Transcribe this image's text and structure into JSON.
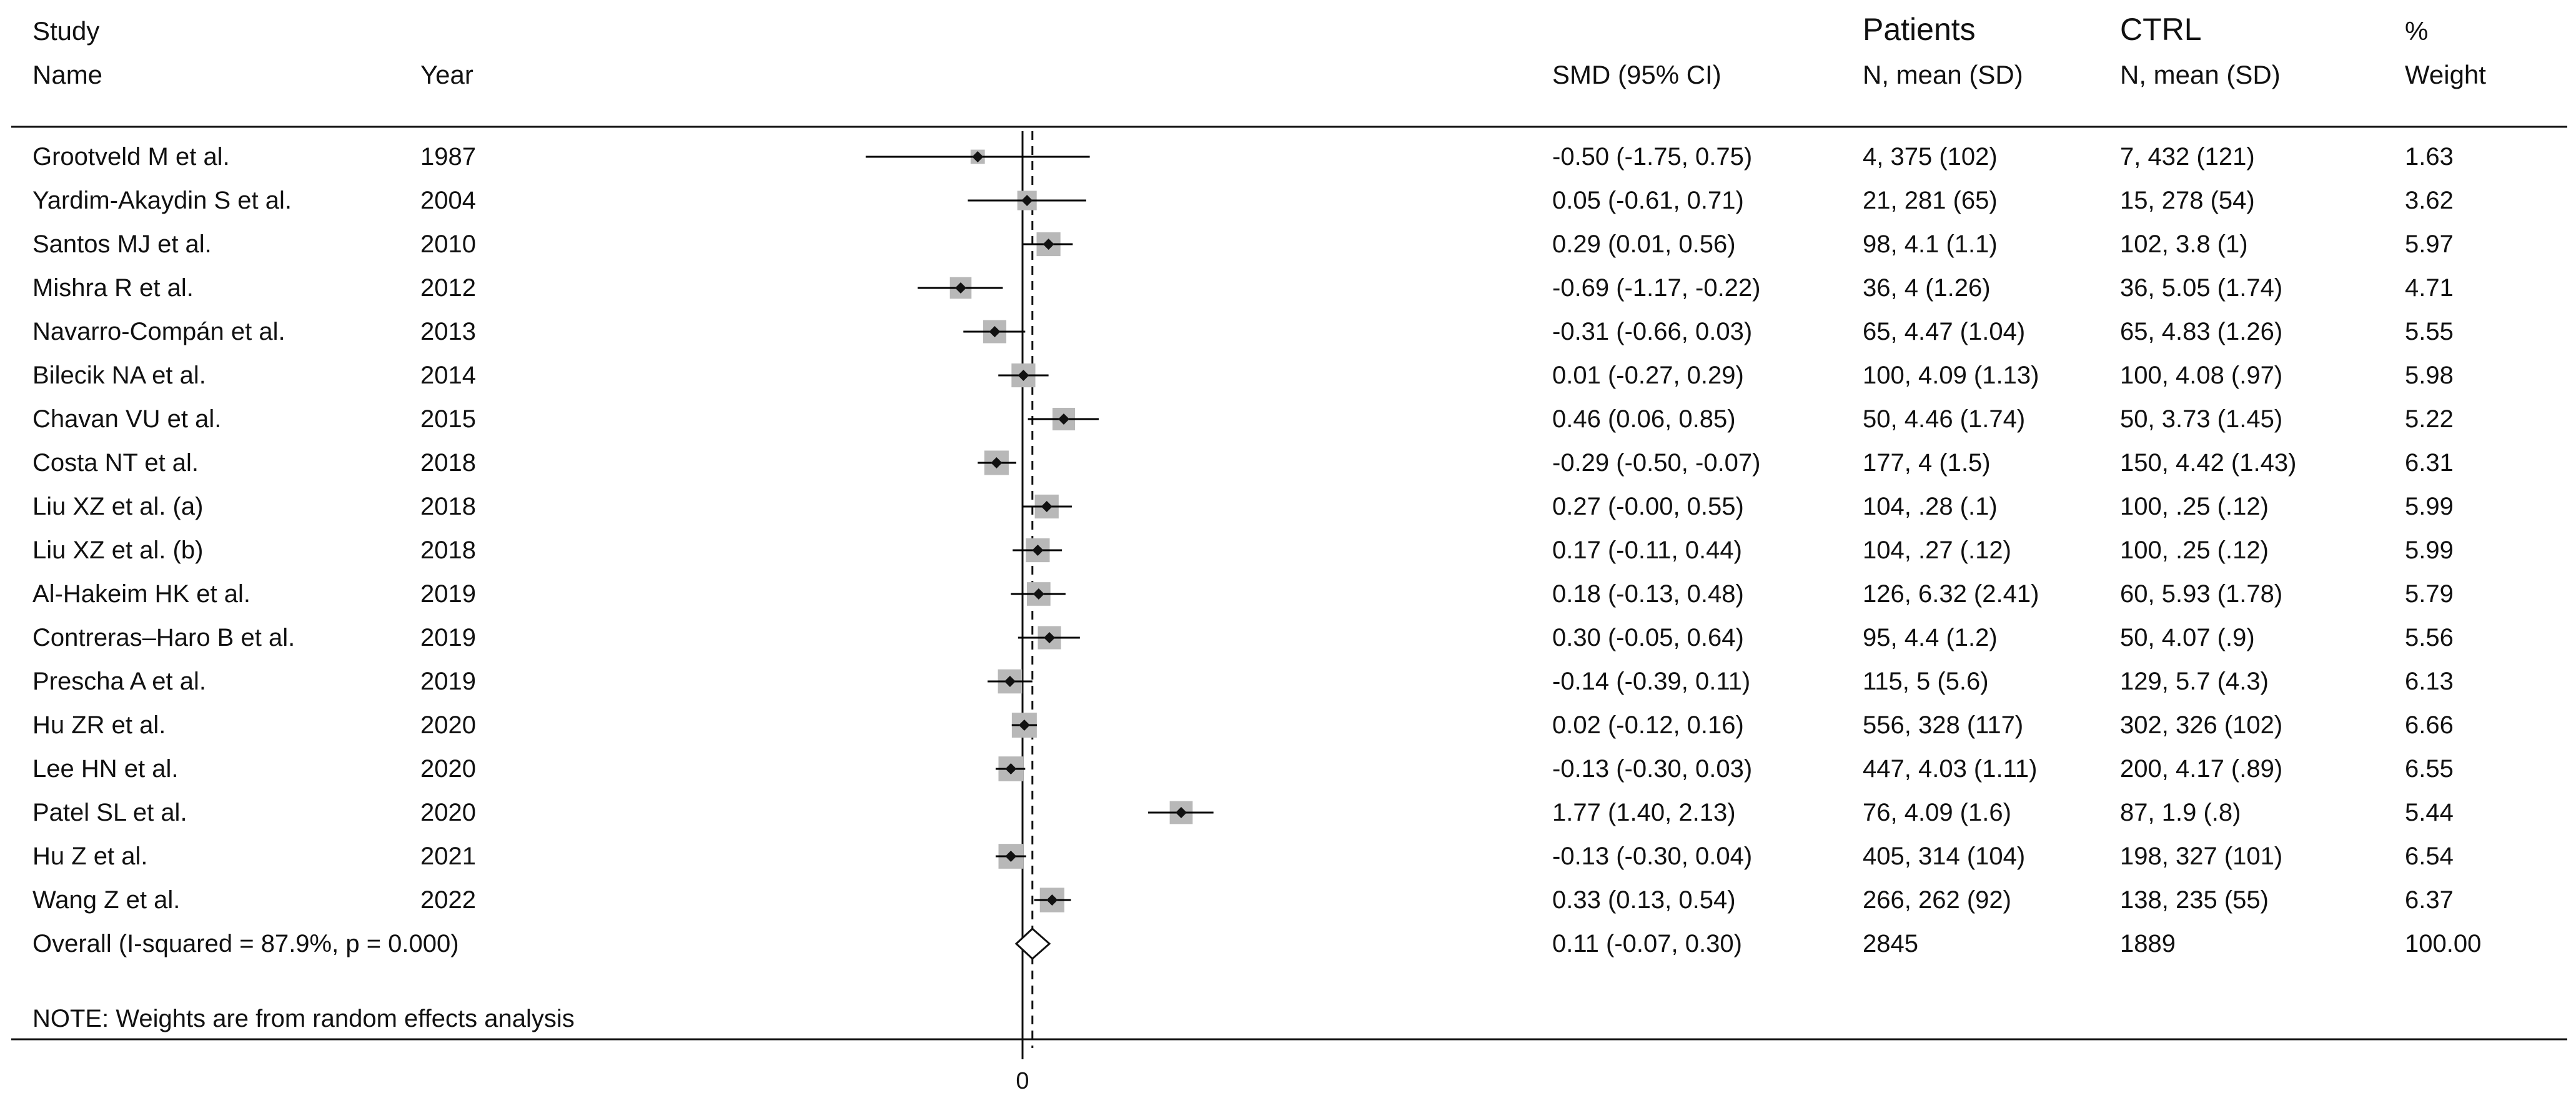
{
  "chart_data": {
    "type": "forest",
    "headers": {
      "study_line1": "Study",
      "study_line2": "Name",
      "year": "Year",
      "smd": "SMD (95% CI)",
      "patients_line1": "Patients",
      "patients_line2": "N, mean (SD)",
      "ctrl_line1": "CTRL",
      "ctrl_line2": "N, mean (SD)",
      "weight_line1": "%",
      "weight_line2": "Weight"
    },
    "xaxis": {
      "ticks": [
        0
      ],
      "tick_labels": [
        "0"
      ],
      "range": [
        -2.4,
        2.45
      ]
    },
    "studies": [
      {
        "name": "Grootveld M et al.",
        "year": "1987",
        "smd": -0.5,
        "lower": -1.75,
        "upper": 0.75,
        "smd_text": "-0.50 (-1.75, 0.75)",
        "patients": "4, 375 (102)",
        "ctrl": "7, 432 (121)",
        "weight": 1.63,
        "weight_text": "1.63"
      },
      {
        "name": "Yardim-Akaydin S et al.",
        "year": "2004",
        "smd": 0.05,
        "lower": -0.61,
        "upper": 0.71,
        "smd_text": "0.05 (-0.61, 0.71)",
        "patients": "21, 281 (65)",
        "ctrl": "15, 278 (54)",
        "weight": 3.62,
        "weight_text": "3.62"
      },
      {
        "name": "Santos MJ et al.",
        "year": "2010",
        "smd": 0.29,
        "lower": 0.01,
        "upper": 0.56,
        "smd_text": "0.29 (0.01, 0.56)",
        "patients": "98, 4.1 (1.1)",
        "ctrl": "102, 3.8 (1)",
        "weight": 5.97,
        "weight_text": "5.97"
      },
      {
        "name": "Mishra R et al.",
        "year": "2012",
        "smd": -0.69,
        "lower": -1.17,
        "upper": -0.22,
        "smd_text": "-0.69 (-1.17, -0.22)",
        "patients": "36, 4 (1.26)",
        "ctrl": "36, 5.05 (1.74)",
        "weight": 4.71,
        "weight_text": "4.71"
      },
      {
        "name": "Navarro-Compán et al.",
        "year": "2013",
        "smd": -0.31,
        "lower": -0.66,
        "upper": 0.03,
        "smd_text": "-0.31 (-0.66, 0.03)",
        "patients": "65, 4.47 (1.04)",
        "ctrl": "65, 4.83 (1.26)",
        "weight": 5.55,
        "weight_text": "5.55"
      },
      {
        "name": "Bilecik NA et al.",
        "year": "2014",
        "smd": 0.01,
        "lower": -0.27,
        "upper": 0.29,
        "smd_text": "0.01 (-0.27, 0.29)",
        "patients": "100, 4.09 (1.13)",
        "ctrl": "100, 4.08 (.97)",
        "weight": 5.98,
        "weight_text": "5.98"
      },
      {
        "name": "Chavan VU et al.",
        "year": "2015",
        "smd": 0.46,
        "lower": 0.06,
        "upper": 0.85,
        "smd_text": "0.46 (0.06, 0.85)",
        "patients": "50, 4.46 (1.74)",
        "ctrl": "50, 3.73 (1.45)",
        "weight": 5.22,
        "weight_text": "5.22"
      },
      {
        "name": "Costa NT et al.",
        "year": "2018",
        "smd": -0.29,
        "lower": -0.5,
        "upper": -0.07,
        "smd_text": "-0.29 (-0.50, -0.07)",
        "patients": "177, 4 (1.5)",
        "ctrl": "150, 4.42 (1.43)",
        "weight": 6.31,
        "weight_text": "6.31"
      },
      {
        "name": "Liu XZ et al. (a)",
        "year": "2018",
        "smd": 0.27,
        "lower": -0.0,
        "upper": 0.55,
        "smd_text": "0.27 (-0.00, 0.55)",
        "patients": "104, .28 (.1)",
        "ctrl": "100, .25 (.12)",
        "weight": 5.99,
        "weight_text": "5.99"
      },
      {
        "name": "Liu XZ et al. (b)",
        "year": "2018",
        "smd": 0.17,
        "lower": -0.11,
        "upper": 0.44,
        "smd_text": "0.17 (-0.11, 0.44)",
        "patients": "104, .27 (.12)",
        "ctrl": "100, .25 (.12)",
        "weight": 5.99,
        "weight_text": "5.99"
      },
      {
        "name": "Al-Hakeim HK et al.",
        "year": "2019",
        "smd": 0.18,
        "lower": -0.13,
        "upper": 0.48,
        "smd_text": "0.18 (-0.13, 0.48)",
        "patients": "126, 6.32 (2.41)",
        "ctrl": "60, 5.93 (1.78)",
        "weight": 5.79,
        "weight_text": "5.79"
      },
      {
        "name": "Contreras–Haro B et al.",
        "year": "2019",
        "smd": 0.3,
        "lower": -0.05,
        "upper": 0.64,
        "smd_text": "0.30 (-0.05, 0.64)",
        "patients": "95, 4.4 (1.2)",
        "ctrl": "50, 4.07 (.9)",
        "weight": 5.56,
        "weight_text": "5.56"
      },
      {
        "name": "Prescha A et al.",
        "year": "2019",
        "smd": -0.14,
        "lower": -0.39,
        "upper": 0.11,
        "smd_text": "-0.14 (-0.39, 0.11)",
        "patients": "115, 5 (5.6)",
        "ctrl": "129, 5.7 (4.3)",
        "weight": 6.13,
        "weight_text": "6.13"
      },
      {
        "name": "Hu ZR et al.",
        "year": "2020",
        "smd": 0.02,
        "lower": -0.12,
        "upper": 0.16,
        "smd_text": "0.02 (-0.12, 0.16)",
        "patients": "556, 328 (117)",
        "ctrl": "302, 326 (102)",
        "weight": 6.66,
        "weight_text": "6.66"
      },
      {
        "name": "Lee HN et al.",
        "year": "2020",
        "smd": -0.13,
        "lower": -0.3,
        "upper": 0.03,
        "smd_text": "-0.13 (-0.30, 0.03)",
        "patients": "447, 4.03 (1.11)",
        "ctrl": "200, 4.17 (.89)",
        "weight": 6.55,
        "weight_text": "6.55"
      },
      {
        "name": "Patel SL et al.",
        "year": "2020",
        "smd": 1.77,
        "lower": 1.4,
        "upper": 2.13,
        "smd_text": "1.77 (1.40, 2.13)",
        "patients": "76, 4.09 (1.6)",
        "ctrl": "87, 1.9 (.8)",
        "weight": 5.44,
        "weight_text": "5.44"
      },
      {
        "name": "Hu Z et al.",
        "year": "2021",
        "smd": -0.13,
        "lower": -0.3,
        "upper": 0.04,
        "smd_text": "-0.13 (-0.30, 0.04)",
        "patients": "405, 314 (104)",
        "ctrl": "198, 327 (101)",
        "weight": 6.54,
        "weight_text": "6.54"
      },
      {
        "name": "Wang Z et al.",
        "year": "2022",
        "smd": 0.33,
        "lower": 0.13,
        "upper": 0.54,
        "smd_text": "0.33 (0.13, 0.54)",
        "patients": "266, 262 (92)",
        "ctrl": "138, 235 (55)",
        "weight": 6.37,
        "weight_text": "6.37"
      }
    ],
    "overall": {
      "label": "Overall  (I-squared = 87.9%, p = 0.000)",
      "smd": 0.11,
      "lower": -0.07,
      "upper": 0.3,
      "smd_text": "0.11 (-0.07, 0.30)",
      "patients": "2845",
      "ctrl": "1889",
      "weight_text": "100.00"
    },
    "note": "NOTE: Weights are from random effects analysis",
    "colors": {
      "ink": "#111111",
      "weight_box": "#b8b8b8",
      "ci_line": "#000000"
    }
  }
}
